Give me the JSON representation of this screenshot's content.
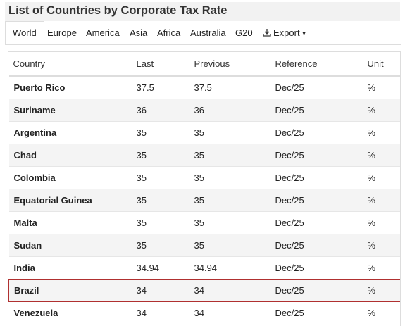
{
  "page": {
    "title": "List of Countries by Corporate Tax Rate"
  },
  "tabs": [
    {
      "label": "World"
    },
    {
      "label": "Europe"
    },
    {
      "label": "America"
    },
    {
      "label": "Asia"
    },
    {
      "label": "Africa"
    },
    {
      "label": "Australia"
    },
    {
      "label": "G20"
    }
  ],
  "export": {
    "label": "Export",
    "icon": "download-icon"
  },
  "table": {
    "headers": [
      "Country",
      "Last",
      "Previous",
      "Reference",
      "Unit"
    ],
    "rows": [
      [
        "Puerto Rico",
        "37.5",
        "37.5",
        "Dec/25",
        "%"
      ],
      [
        "Suriname",
        "36",
        "36",
        "Dec/25",
        "%"
      ],
      [
        "Argentina",
        "35",
        "35",
        "Dec/25",
        "%"
      ],
      [
        "Chad",
        "35",
        "35",
        "Dec/25",
        "%"
      ],
      [
        "Colombia",
        "35",
        "35",
        "Dec/25",
        "%"
      ],
      [
        "Equatorial Guinea",
        "35",
        "35",
        "Dec/25",
        "%"
      ],
      [
        "Malta",
        "35",
        "35",
        "Dec/25",
        "%"
      ],
      [
        "Sudan",
        "35",
        "35",
        "Dec/25",
        "%"
      ],
      [
        "India",
        "34.94",
        "34.94",
        "Dec/25",
        "%"
      ],
      [
        "Brazil",
        "34",
        "34",
        "Dec/25",
        "%"
      ],
      [
        "Venezuela",
        "34",
        "34",
        "Dec/25",
        "%"
      ]
    ],
    "highlighted_row": "Brazil"
  },
  "colors": {
    "highlight_border": "#b03030",
    "title_bg": "#f2f2f2",
    "alt_row": "#f4f4f4"
  }
}
